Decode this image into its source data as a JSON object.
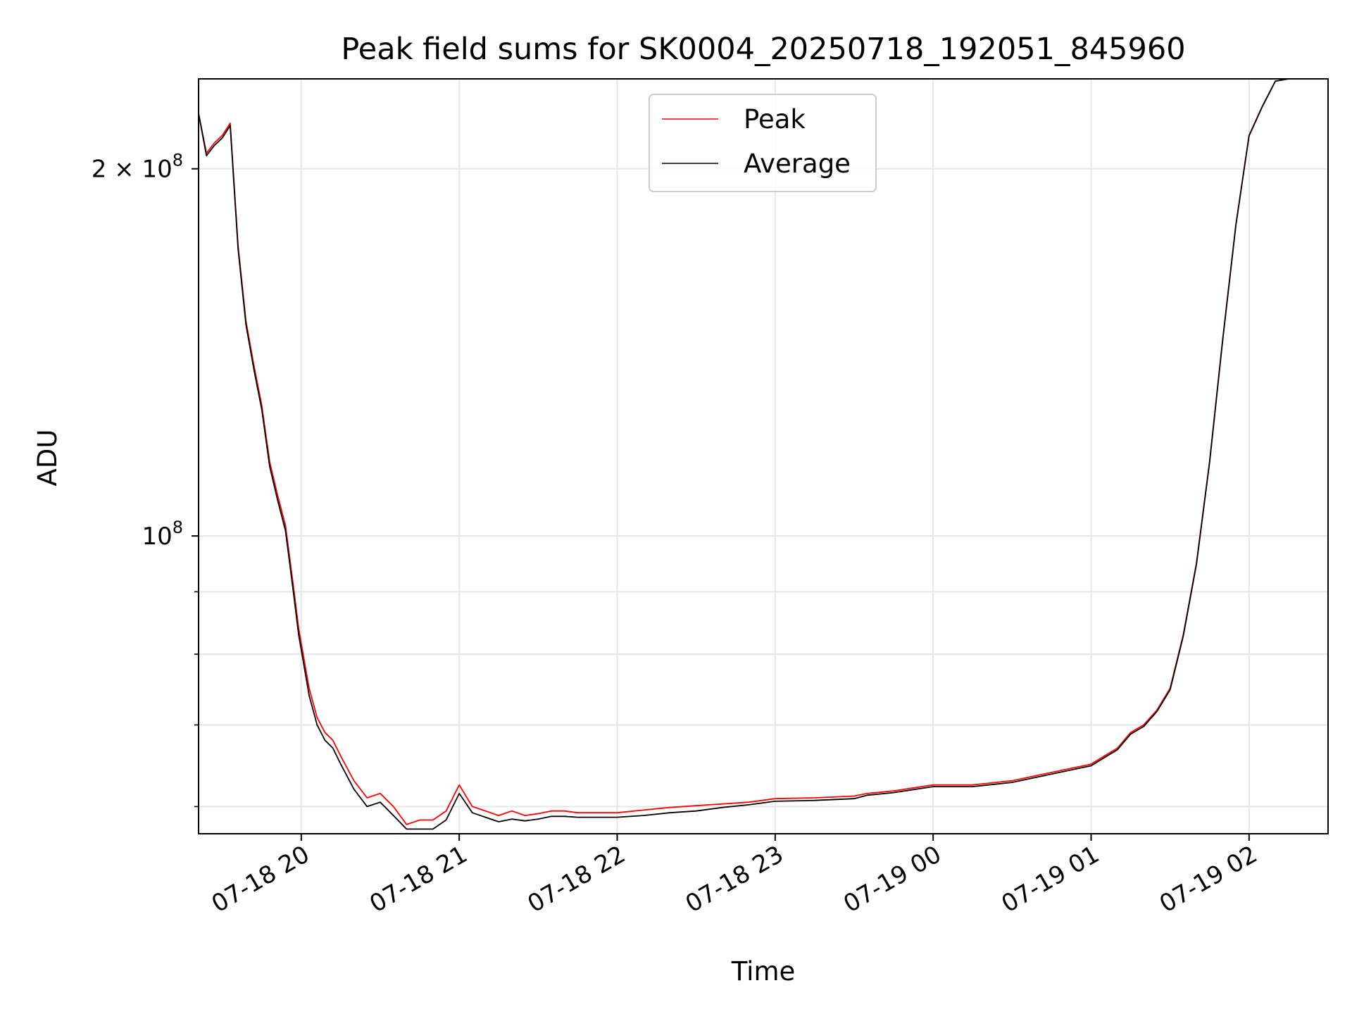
{
  "chart_data": {
    "type": "line",
    "title": "Peak field sums for SK0004_20250718_192051_845960",
    "xlabel": "Time",
    "ylabel": "ADU",
    "xscale": "time",
    "yscale": "log",
    "xlim": [
      "2025-07-18 19:21",
      "2025-07-19 02:30"
    ],
    "ylim": [
      57000000,
      237000000
    ],
    "grid": true,
    "legend": "upper center",
    "x_ticks": [
      {
        "value": "2025-07-18 20:00",
        "label": "07-18 20"
      },
      {
        "value": "2025-07-18 21:00",
        "label": "07-18 21"
      },
      {
        "value": "2025-07-18 22:00",
        "label": "07-18 22"
      },
      {
        "value": "2025-07-18 23:00",
        "label": "07-18 23"
      },
      {
        "value": "2025-07-19 00:00",
        "label": "07-19 00"
      },
      {
        "value": "2025-07-19 01:00",
        "label": "07-19 01"
      },
      {
        "value": "2025-07-19 02:00",
        "label": "07-19 02"
      }
    ],
    "y_ticks": [
      {
        "value": 100000000,
        "label_base": "10",
        "label_exp": "8",
        "label_coef": ""
      },
      {
        "value": 200000000,
        "label_base": "10",
        "label_exp": "8",
        "label_coef": "2 × "
      }
    ],
    "y_minor_ticks": [
      60000000,
      70000000,
      80000000,
      90000000
    ],
    "series": [
      {
        "name": "Peak",
        "color": "#ff0000",
        "x": [
          "2025-07-18 19:21",
          "2025-07-18 19:24",
          "2025-07-18 19:27",
          "2025-07-18 19:30",
          "2025-07-18 19:33",
          "2025-07-18 19:36",
          "2025-07-18 19:39",
          "2025-07-18 19:42",
          "2025-07-18 19:45",
          "2025-07-18 19:48",
          "2025-07-18 19:51",
          "2025-07-18 19:54",
          "2025-07-18 19:57",
          "2025-07-18 19:59",
          "2025-07-18 20:03",
          "2025-07-18 20:06",
          "2025-07-18 20:09",
          "2025-07-18 20:12",
          "2025-07-18 20:15",
          "2025-07-18 20:20",
          "2025-07-18 20:25",
          "2025-07-18 20:30",
          "2025-07-18 20:35",
          "2025-07-18 20:40",
          "2025-07-18 20:45",
          "2025-07-18 20:50",
          "2025-07-18 20:55",
          "2025-07-18 21:00",
          "2025-07-18 21:05",
          "2025-07-18 21:10",
          "2025-07-18 21:15",
          "2025-07-18 21:20",
          "2025-07-18 21:25",
          "2025-07-18 21:30",
          "2025-07-18 21:35",
          "2025-07-18 21:40",
          "2025-07-18 21:45",
          "2025-07-18 21:50",
          "2025-07-18 22:00",
          "2025-07-18 22:10",
          "2025-07-18 22:20",
          "2025-07-18 22:30",
          "2025-07-18 22:35",
          "2025-07-18 22:40",
          "2025-07-18 22:50",
          "2025-07-18 23:00",
          "2025-07-18 23:15",
          "2025-07-18 23:30",
          "2025-07-18 23:35",
          "2025-07-18 23:45",
          "2025-07-19 00:00",
          "2025-07-19 00:15",
          "2025-07-19 00:30",
          "2025-07-19 00:45",
          "2025-07-19 01:00",
          "2025-07-19 01:05",
          "2025-07-19 01:10",
          "2025-07-19 01:15",
          "2025-07-19 01:20",
          "2025-07-19 01:25",
          "2025-07-19 01:30",
          "2025-07-19 01:35",
          "2025-07-19 01:40",
          "2025-07-19 01:45",
          "2025-07-19 01:50",
          "2025-07-19 01:55",
          "2025-07-19 02:00",
          "2025-07-19 02:05",
          "2025-07-19 02:10",
          "2025-07-19 02:15",
          "2025-07-19 02:20",
          "2025-07-19 02:25",
          "2025-07-19 02:30"
        ],
        "values": [
          222000000,
          206000000,
          210000000,
          213000000,
          218000000,
          173000000,
          150000000,
          138000000,
          128000000,
          115000000,
          108000000,
          102000000,
          91000000,
          84000000,
          75000000,
          71000000,
          69000000,
          68000000,
          66000000,
          63000000,
          61000000,
          61500000,
          60000000,
          58000000,
          58500000,
          58500000,
          59500000,
          62500000,
          60000000,
          59500000,
          59000000,
          59500000,
          59000000,
          59200000,
          59500000,
          59500000,
          59300000,
          59300000,
          59300000,
          59600000,
          59900000,
          60100000,
          60200000,
          60300000,
          60500000,
          60900000,
          61000000,
          61200000,
          61500000,
          61800000,
          62500000,
          62500000,
          63000000,
          64000000,
          65000000,
          66000000,
          67000000,
          69000000,
          70000000,
          72000000,
          75000000,
          83000000,
          95000000,
          115000000,
          145000000,
          180000000,
          213000000,
          225000000,
          236000000,
          237000000,
          237000000,
          237000000,
          237000000
        ]
      },
      {
        "name": "Average",
        "color": "#000000",
        "x": [
          "2025-07-18 19:21",
          "2025-07-18 19:24",
          "2025-07-18 19:27",
          "2025-07-18 19:30",
          "2025-07-18 19:33",
          "2025-07-18 19:36",
          "2025-07-18 19:39",
          "2025-07-18 19:42",
          "2025-07-18 19:45",
          "2025-07-18 19:48",
          "2025-07-18 19:51",
          "2025-07-18 19:54",
          "2025-07-18 19:57",
          "2025-07-18 19:59",
          "2025-07-18 20:03",
          "2025-07-18 20:06",
          "2025-07-18 20:09",
          "2025-07-18 20:12",
          "2025-07-18 20:15",
          "2025-07-18 20:20",
          "2025-07-18 20:25",
          "2025-07-18 20:30",
          "2025-07-18 20:35",
          "2025-07-18 20:40",
          "2025-07-18 20:45",
          "2025-07-18 20:50",
          "2025-07-18 20:55",
          "2025-07-18 21:00",
          "2025-07-18 21:05",
          "2025-07-18 21:10",
          "2025-07-18 21:15",
          "2025-07-18 21:20",
          "2025-07-18 21:25",
          "2025-07-18 21:30",
          "2025-07-18 21:35",
          "2025-07-18 21:40",
          "2025-07-18 21:45",
          "2025-07-18 21:50",
          "2025-07-18 22:00",
          "2025-07-18 22:10",
          "2025-07-18 22:20",
          "2025-07-18 22:30",
          "2025-07-18 22:35",
          "2025-07-18 22:40",
          "2025-07-18 22:50",
          "2025-07-18 23:00",
          "2025-07-18 23:15",
          "2025-07-18 23:30",
          "2025-07-18 23:35",
          "2025-07-18 23:45",
          "2025-07-19 00:00",
          "2025-07-19 00:15",
          "2025-07-19 00:30",
          "2025-07-19 00:45",
          "2025-07-19 01:00",
          "2025-07-19 01:05",
          "2025-07-19 01:10",
          "2025-07-19 01:15",
          "2025-07-19 01:20",
          "2025-07-19 01:25",
          "2025-07-19 01:30",
          "2025-07-19 01:35",
          "2025-07-19 01:40",
          "2025-07-19 01:45",
          "2025-07-19 01:50",
          "2025-07-19 01:55",
          "2025-07-19 02:00",
          "2025-07-19 02:05",
          "2025-07-19 02:10",
          "2025-07-19 02:15",
          "2025-07-19 02:20",
          "2025-07-19 02:25",
          "2025-07-19 02:30"
        ],
        "values": [
          222000000,
          205000000,
          209000000,
          212000000,
          217000000,
          172000000,
          149000000,
          137000000,
          127000000,
          114000000,
          107000000,
          101000000,
          90000000,
          83000000,
          74000000,
          70000000,
          68000000,
          67000000,
          65000000,
          62000000,
          60000000,
          60500000,
          59000000,
          57500000,
          57500000,
          57500000,
          58500000,
          61500000,
          59300000,
          58800000,
          58300000,
          58600000,
          58400000,
          58600000,
          58900000,
          58900000,
          58800000,
          58800000,
          58800000,
          59000000,
          59300000,
          59500000,
          59700000,
          59900000,
          60200000,
          60600000,
          60700000,
          60900000,
          61300000,
          61600000,
          62300000,
          62300000,
          62800000,
          63800000,
          64800000,
          65800000,
          66800000,
          68800000,
          69800000,
          71800000,
          74800000,
          82800000,
          94800000,
          114800000,
          144800000,
          179800000,
          212800000,
          224800000,
          236000000,
          237000000,
          237000000,
          237000000,
          237000000
        ]
      }
    ]
  }
}
